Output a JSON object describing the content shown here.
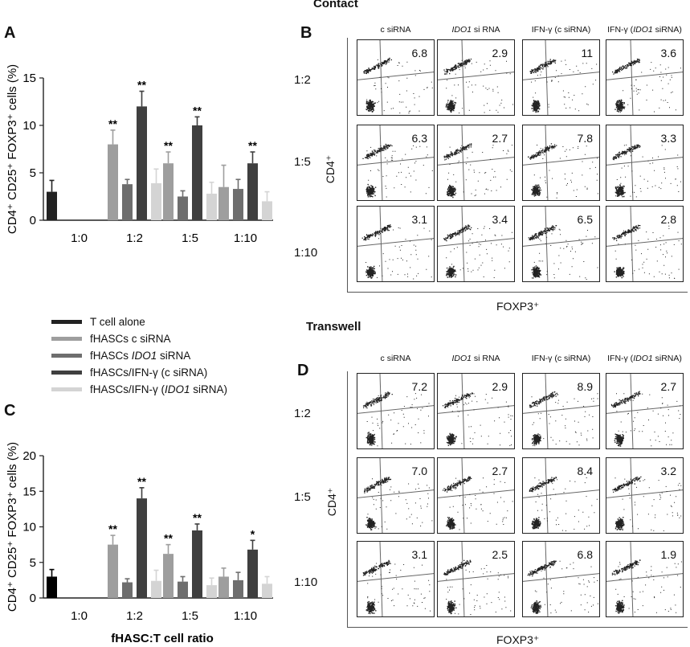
{
  "figure": {
    "contact_title": "Contact",
    "transwell_title": "Transwell",
    "panel_letters": {
      "A": "A",
      "B": "B",
      "C": "C",
      "D": "D"
    },
    "ratio_rows": [
      "1:2",
      "1:5",
      "1:10"
    ],
    "flow_columns": [
      {
        "pre": "c siRNA",
        "ital": "",
        "post": ""
      },
      {
        "pre": "",
        "ital": "IDO1",
        "post": " si RNA"
      },
      {
        "pre": "IFN-γ (c siRNA)",
        "ital": "",
        "post": ""
      },
      {
        "pre": "IFN-γ (",
        "ital": "IDO1",
        "post": " siRNA)"
      }
    ],
    "flow_y_label": "CD4⁺",
    "flow_x_label": "FOXP3⁺",
    "contact_values": [
      [
        "6.8",
        "2.9",
        "11",
        "3.6"
      ],
      [
        "6.3",
        "2.7",
        "7.8",
        "3.3"
      ],
      [
        "3.1",
        "3.4",
        "6.5",
        "2.8"
      ]
    ],
    "transwell_values": [
      [
        "7.2",
        "2.9",
        "8.9",
        "2.7"
      ],
      [
        "7.0",
        "2.7",
        "8.4",
        "3.2"
      ],
      [
        "3.1",
        "2.5",
        "6.8",
        "1.9"
      ]
    ]
  },
  "legend": [
    {
      "pre": "T cell alone",
      "ital": "",
      "post": "",
      "color": "#222222"
    },
    {
      "pre": "fHASCs c siRNA",
      "ital": "",
      "post": "",
      "color": "#9e9e9e"
    },
    {
      "pre": "fHASCs ",
      "ital": "IDO1",
      "post": " siRNA",
      "color": "#6e6e6e"
    },
    {
      "pre": "fHASCs/IFN-γ (c siRNA)",
      "ital": "",
      "post": "",
      "color": "#3f3f3f"
    },
    {
      "pre": "fHASCs/IFN-γ (",
      "ital": "IDO1",
      "post": " siRNA)",
      "color": "#d4d4d4"
    }
  ],
  "chart_data": [
    {
      "type": "bar",
      "panel": "A",
      "ylabel": "CD4⁺ CD25⁺ FOXP3⁺ cells (%)",
      "xlabel": "",
      "categories": [
        "1:0",
        "1:2",
        "1:5",
        "1:10"
      ],
      "ylim": [
        0,
        15
      ],
      "yticks": [
        0,
        5,
        10,
        15
      ],
      "series": [
        {
          "name": "T cell alone",
          "color": "#222222",
          "values": [
            3,
            null,
            null,
            null
          ],
          "errors": [
            1.2,
            null,
            null,
            null
          ]
        },
        {
          "name": "fHASCs c siRNA",
          "color": "#9e9e9e",
          "values": [
            null,
            8,
            6,
            3.5
          ],
          "errors": [
            null,
            1.5,
            1.2,
            2.3
          ]
        },
        {
          "name": "fHASCs IDO1 siRNA",
          "color": "#6e6e6e",
          "values": [
            null,
            3.8,
            2.5,
            3.3
          ],
          "errors": [
            null,
            0.5,
            0.6,
            1.0
          ]
        },
        {
          "name": "fHASCs/IFN-γ (c siRNA)",
          "color": "#3f3f3f",
          "values": [
            null,
            12,
            10,
            6
          ],
          "errors": [
            null,
            1.6,
            0.9,
            1.2
          ]
        },
        {
          "name": "fHASCs/IFN-γ (IDO1 siRNA)",
          "color": "#d4d4d4",
          "values": [
            null,
            3.9,
            2.8,
            2.0
          ],
          "errors": [
            null,
            1.5,
            1.2,
            1.0
          ]
        }
      ],
      "significance": [
        {
          "category": "1:2",
          "series": "fHASCs c siRNA",
          "mark": "**"
        },
        {
          "category": "1:2",
          "series": "fHASCs/IFN-γ (c siRNA)",
          "mark": "**"
        },
        {
          "category": "1:5",
          "series": "fHASCs c siRNA",
          "mark": "**"
        },
        {
          "category": "1:5",
          "series": "fHASCs/IFN-γ (c siRNA)",
          "mark": "**"
        },
        {
          "category": "1:10",
          "series": "fHASCs/IFN-γ (c siRNA)",
          "mark": "**"
        }
      ]
    },
    {
      "type": "bar",
      "panel": "C",
      "ylabel": "CD4⁺ CD25⁺ FOXP3⁺ cells (%)",
      "xlabel": "fHASC:T cell ratio",
      "categories": [
        "1:0",
        "1:2",
        "1:5",
        "1:10"
      ],
      "ylim": [
        0,
        20
      ],
      "yticks": [
        0,
        5,
        10,
        15,
        20
      ],
      "series": [
        {
          "name": "T cell alone",
          "color": "#000000",
          "values": [
            3,
            null,
            null,
            null
          ],
          "errors": [
            1.0,
            null,
            null,
            null
          ]
        },
        {
          "name": "fHASCs c siRNA",
          "color": "#9e9e9e",
          "values": [
            null,
            7.5,
            6.2,
            3.0
          ],
          "errors": [
            null,
            1.3,
            1.3,
            1.2
          ]
        },
        {
          "name": "fHASCs IDO1 siRNA",
          "color": "#6e6e6e",
          "values": [
            null,
            2.2,
            2.3,
            2.5
          ],
          "errors": [
            null,
            0.5,
            0.7,
            1.1
          ]
        },
        {
          "name": "fHASCs/IFN-γ (c siRNA)",
          "color": "#3f3f3f",
          "values": [
            null,
            14,
            9.5,
            6.8
          ],
          "errors": [
            null,
            1.5,
            0.9,
            1.3
          ]
        },
        {
          "name": "fHASCs/IFN-γ (IDO1 siRNA)",
          "color": "#d4d4d4",
          "values": [
            null,
            2.4,
            1.8,
            2.0
          ],
          "errors": [
            null,
            1.5,
            1.0,
            1.0
          ]
        }
      ],
      "significance": [
        {
          "category": "1:2",
          "series": "fHASCs c siRNA",
          "mark": "**"
        },
        {
          "category": "1:2",
          "series": "fHASCs/IFN-γ (c siRNA)",
          "mark": "**"
        },
        {
          "category": "1:5",
          "series": "fHASCs c siRNA",
          "mark": "**"
        },
        {
          "category": "1:5",
          "series": "fHASCs/IFN-γ (c siRNA)",
          "mark": "**"
        },
        {
          "category": "1:10",
          "series": "fHASCs/IFN-γ (c siRNA)",
          "mark": "*"
        }
      ]
    }
  ]
}
